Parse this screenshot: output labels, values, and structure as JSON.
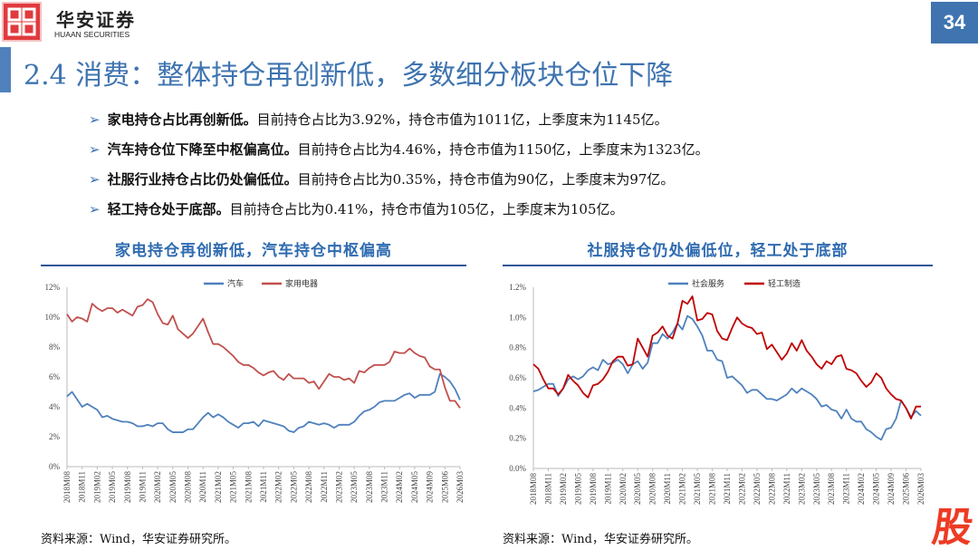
{
  "header": {
    "logo_cn": "华安证券",
    "logo_en": "HUAAN SECURITIES",
    "page_number": "34",
    "accent": "#3f74b0"
  },
  "title": "2.4 消费：整体持仓再创新低，多数细分板块仓位下降",
  "bullets": [
    {
      "bold": "家电持仓占比再创新低。",
      "text": "目前持仓占比为3.92%，持仓市值为1011亿，上季度末为1145亿。"
    },
    {
      "bold": "汽车持仓位下降至中枢偏高位。",
      "text": "目前持仓占比为4.46%，持仓市值为1150亿，上季度末为1323亿。"
    },
    {
      "bold": "社服行业持仓占比仍处偏低位。",
      "text": "目前持仓占比为0.35%，持仓市值为90亿，上季度末为97亿。"
    },
    {
      "bold": "轻工持仓处于底部。",
      "text": "目前持仓占比为0.41%，持仓市值为105亿，上季度末为105亿。"
    }
  ],
  "charts": [
    {
      "title": "家电持仓再创新低，汽车持仓中枢偏高",
      "source": "资料来源：Wind，华安证券研究所。"
    },
    {
      "title": "社服持仓仍处偏低位，轻工处于底部",
      "source": "资料来源：Wind，华安证券研究所。"
    }
  ],
  "watermark": "股",
  "chart_data": [
    {
      "type": "line",
      "ylim": [
        0,
        12
      ],
      "yticks": [
        "0%",
        "2%",
        "4%",
        "6%",
        "8%",
        "10%",
        "12%"
      ],
      "legend": "top-center",
      "xticks": [
        "2018M08",
        "2018M11",
        "2019M02",
        "2019M05",
        "2019M08",
        "2019M11",
        "2020M02",
        "2020M05",
        "2020M08",
        "2020M11",
        "2021M02",
        "2021M05",
        "2021M08",
        "2021M11",
        "2022M02",
        "2022M05",
        "2022M08",
        "2022M11",
        "2023M02",
        "2023M05",
        "2023M08",
        "2023M11",
        "2024M02",
        "2024M05",
        "2024M09",
        "2025M06",
        "2026M03"
      ],
      "series": [
        {
          "name": "汽车",
          "color": "#4f81bd",
          "values": [
            4.7,
            5.0,
            4.5,
            4.0,
            4.2,
            4.0,
            3.8,
            3.3,
            3.4,
            3.2,
            3.1,
            3.0,
            3.0,
            2.9,
            2.7,
            2.7,
            2.8,
            2.7,
            2.9,
            2.9,
            2.5,
            2.3,
            2.3,
            2.3,
            2.5,
            2.5,
            2.9,
            3.3,
            3.6,
            3.3,
            3.5,
            3.3,
            3.0,
            2.8,
            2.6,
            2.9,
            2.9,
            3.0,
            2.7,
            3.1,
            3.0,
            2.9,
            2.8,
            2.7,
            2.4,
            2.3,
            2.6,
            2.7,
            3.0,
            2.9,
            2.8,
            2.9,
            2.8,
            2.6,
            2.8,
            2.8,
            2.8,
            3.0,
            3.4,
            3.7,
            3.8,
            4.0,
            4.3,
            4.4,
            4.4,
            4.4,
            4.6,
            4.8,
            4.9,
            4.6,
            4.8,
            4.8,
            4.8,
            5.0,
            6.2,
            6.0,
            5.7,
            5.2,
            4.46
          ]
        },
        {
          "name": "家用电器",
          "color": "#c0504d",
          "values": [
            10.2,
            9.7,
            10.0,
            9.9,
            9.7,
            10.9,
            10.6,
            10.4,
            10.6,
            10.6,
            10.3,
            10.5,
            10.3,
            10.1,
            10.7,
            10.8,
            11.2,
            11.0,
            10.2,
            9.6,
            9.5,
            10.1,
            9.2,
            8.9,
            8.6,
            8.9,
            9.4,
            9.9,
            9.0,
            8.2,
            8.2,
            8.0,
            7.7,
            7.4,
            7.0,
            6.8,
            6.8,
            6.6,
            6.3,
            6.1,
            6.3,
            6.4,
            6.0,
            5.8,
            6.2,
            5.9,
            5.9,
            5.9,
            5.6,
            5.7,
            5.2,
            5.7,
            6.2,
            6.0,
            6.0,
            5.8,
            5.9,
            5.6,
            6.4,
            6.3,
            6.6,
            6.8,
            6.8,
            6.8,
            7.0,
            7.7,
            7.6,
            7.6,
            7.9,
            7.6,
            7.4,
            7.3,
            6.7,
            6.5,
            6.5,
            5.3,
            4.4,
            4.4,
            3.92
          ]
        }
      ]
    },
    {
      "type": "line",
      "ylim": [
        0,
        1.2
      ],
      "yticks": [
        "0.0%",
        "0.2%",
        "0.4%",
        "0.6%",
        "0.8%",
        "1.0%",
        "1.2%"
      ],
      "legend": "top-center",
      "xticks": [
        "2018M08",
        "2018M11",
        "2019M02",
        "2019M05",
        "2019M08",
        "2019M11",
        "2020M02",
        "2020M05",
        "2020M08",
        "2020M11",
        "2021M02",
        "2021M05",
        "2021M08",
        "2021M11",
        "2022M02",
        "2022M05",
        "2022M08",
        "2022M11",
        "2023M02",
        "2023M05",
        "2023M08",
        "2023M11",
        "2024M02",
        "2024M05",
        "2024M09",
        "2025M06",
        "2026M03"
      ],
      "series": [
        {
          "name": "社会服务",
          "color": "#4f81bd",
          "values": [
            0.51,
            0.52,
            0.54,
            0.56,
            0.56,
            0.48,
            0.53,
            0.59,
            0.61,
            0.59,
            0.61,
            0.65,
            0.67,
            0.65,
            0.72,
            0.69,
            0.7,
            0.72,
            0.69,
            0.63,
            0.69,
            0.71,
            0.66,
            0.7,
            0.83,
            0.83,
            0.89,
            0.86,
            0.9,
            0.96,
            0.92,
            1.01,
            0.99,
            0.94,
            0.88,
            0.78,
            0.78,
            0.72,
            0.71,
            0.6,
            0.61,
            0.58,
            0.55,
            0.5,
            0.52,
            0.52,
            0.49,
            0.46,
            0.46,
            0.45,
            0.47,
            0.49,
            0.53,
            0.5,
            0.53,
            0.51,
            0.49,
            0.46,
            0.41,
            0.42,
            0.39,
            0.38,
            0.33,
            0.39,
            0.33,
            0.31,
            0.31,
            0.26,
            0.24,
            0.21,
            0.19,
            0.26,
            0.27,
            0.33,
            0.45,
            0.4,
            0.34,
            0.38,
            0.35
          ]
        },
        {
          "name": "轻工制造",
          "color": "#c00000",
          "values": [
            0.69,
            0.66,
            0.59,
            0.53,
            0.53,
            0.49,
            0.53,
            0.62,
            0.58,
            0.55,
            0.5,
            0.47,
            0.55,
            0.56,
            0.59,
            0.64,
            0.71,
            0.74,
            0.74,
            0.68,
            0.69,
            0.86,
            0.8,
            0.74,
            0.88,
            0.9,
            0.94,
            0.88,
            0.86,
            0.96,
            1.11,
            1.09,
            1.14,
            0.98,
            0.99,
            1.03,
            1.02,
            0.91,
            0.86,
            0.85,
            0.93,
            1.0,
            0.96,
            0.94,
            0.93,
            0.89,
            0.9,
            0.79,
            0.82,
            0.77,
            0.72,
            0.76,
            0.83,
            0.78,
            0.85,
            0.78,
            0.74,
            0.69,
            0.66,
            0.71,
            0.69,
            0.74,
            0.75,
            0.66,
            0.65,
            0.63,
            0.58,
            0.54,
            0.57,
            0.63,
            0.6,
            0.53,
            0.49,
            0.46,
            0.45,
            0.4,
            0.33,
            0.41,
            0.41
          ]
        }
      ]
    }
  ]
}
